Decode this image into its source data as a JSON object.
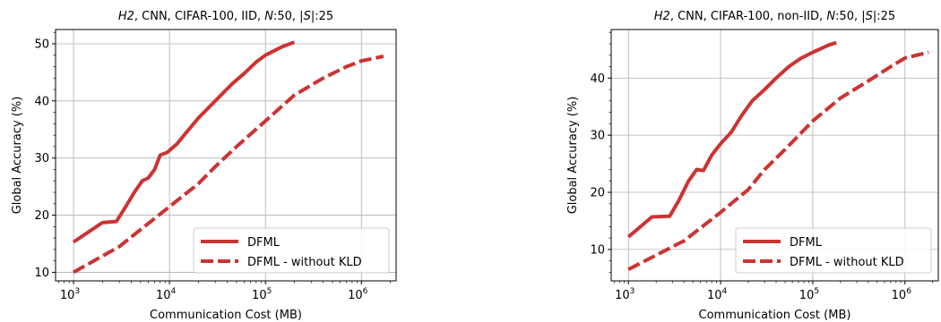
{
  "colors": {
    "series": "#cc3333",
    "grid": "#b0b0b0",
    "axis": "#000000"
  },
  "chart_data": [
    {
      "type": "line",
      "title": "H2, CNN, CIFAR-100, IID, N:50, |S|:25",
      "title_parts": [
        "H2",
        ", CNN, CIFAR-100, IID, ",
        "N",
        ":50, |",
        "S",
        "|:25"
      ],
      "xlabel": "Communication Cost (MB)",
      "ylabel": "Global Accuracy (%)",
      "xscale": "log",
      "xlim": [
        650,
        2300000
      ],
      "ylim": [
        8.5,
        52.5
      ],
      "xticks": [
        1000,
        10000,
        100000,
        1000000
      ],
      "xtick_labels": [
        [
          "10",
          "3"
        ],
        [
          "10",
          "4"
        ],
        [
          "10",
          "5"
        ],
        [
          "10",
          "6"
        ]
      ],
      "yticks": [
        10,
        20,
        30,
        40,
        50
      ],
      "ytick_labels": [
        "10",
        "20",
        "30",
        "40",
        "50"
      ],
      "grid": true,
      "legend_position": "lower-right",
      "series": [
        {
          "name": "DFML",
          "style": "solid",
          "x": [
            1000,
            2000,
            2800,
            3500,
            4300,
            5200,
            6000,
            7000,
            8000,
            9500,
            12000,
            15000,
            20000,
            30000,
            45000,
            60000,
            80000,
            100000,
            150000,
            200000
          ],
          "y": [
            15.3,
            18.7,
            18.9,
            21.5,
            24,
            26,
            26.5,
            28,
            30.5,
            31,
            32.5,
            34.5,
            37,
            40,
            43,
            44.8,
            46.8,
            48,
            49.5,
            50.3
          ]
        },
        {
          "name": "DFML - without KLD",
          "style": "dashed",
          "x": [
            1000,
            3000,
            10000,
            20000,
            30000,
            50000,
            100000,
            200000,
            400000,
            700000,
            1000000,
            1700000
          ],
          "y": [
            10,
            14.5,
            21.5,
            25.5,
            28.5,
            32,
            36.5,
            41,
            44,
            46,
            47,
            47.8
          ]
        }
      ]
    },
    {
      "type": "line",
      "title": "H2, CNN, CIFAR-100, non-IID, N:50, |S|:25",
      "title_parts": [
        "H2",
        ", CNN, CIFAR-100, non-IID, ",
        "N",
        ":50, |",
        "S",
        "|:25"
      ],
      "xlabel": "Communication Cost (MB)",
      "ylabel": "Global Accuracy (%)",
      "xscale": "log",
      "xlim": [
        650,
        2300000
      ],
      "ylim": [
        4.5,
        48.5
      ],
      "xticks": [
        1000,
        10000,
        100000,
        1000000
      ],
      "xtick_labels": [
        [
          "10",
          "3"
        ],
        [
          "10",
          "4"
        ],
        [
          "10",
          "5"
        ],
        [
          "10",
          "6"
        ]
      ],
      "yticks": [
        10,
        20,
        30,
        40
      ],
      "ytick_labels": [
        "10",
        "20",
        "30",
        "40"
      ],
      "grid": true,
      "legend_position": "lower-right",
      "series": [
        {
          "name": "DFML",
          "style": "solid",
          "x": [
            1000,
            1800,
            2800,
            3500,
            4500,
            5500,
            6500,
            8000,
            10000,
            13000,
            17000,
            22000,
            30000,
            40000,
            55000,
            75000,
            100000,
            150000,
            180000
          ],
          "y": [
            12.2,
            15.7,
            15.8,
            18.5,
            22,
            24,
            23.8,
            26.5,
            28.5,
            30.5,
            33.5,
            36,
            38,
            40,
            42,
            43.5,
            44.5,
            45.8,
            46.2
          ]
        },
        {
          "name": "DFML - without KLD",
          "style": "dashed",
          "x": [
            1000,
            4000,
            10000,
            20000,
            30000,
            50000,
            100000,
            200000,
            400000,
            700000,
            1000000,
            1800000
          ],
          "y": [
            6.5,
            11.5,
            16.5,
            20.5,
            24,
            27.5,
            32.5,
            36.5,
            39.5,
            42,
            43.5,
            44.5
          ]
        }
      ]
    }
  ]
}
